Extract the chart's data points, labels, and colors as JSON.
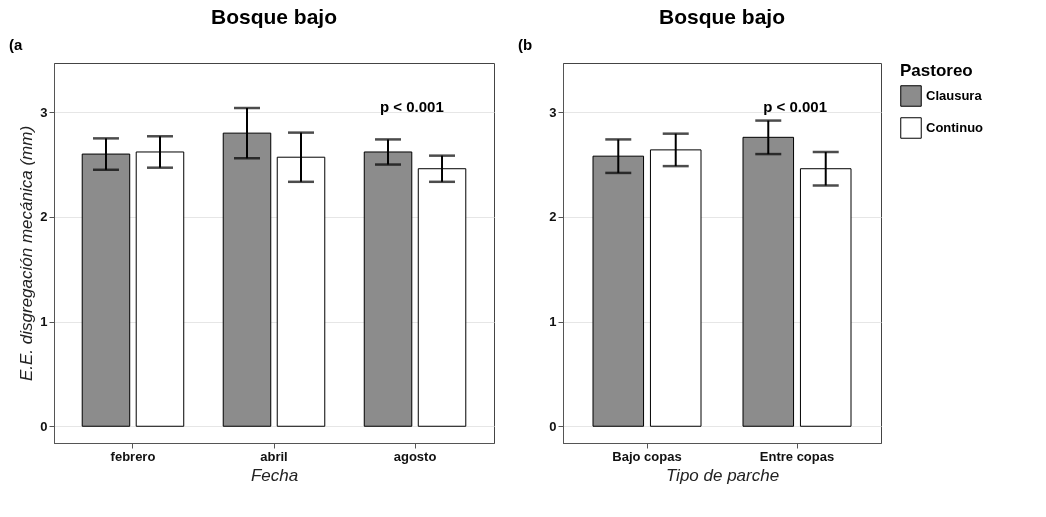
{
  "chart_data": [
    {
      "type": "bar",
      "title": "Bosque bajo",
      "xlabel": "Fecha",
      "ylabel": "E.E. disgregación mecánica (mm)",
      "categories": [
        "febrero",
        "abril",
        "agosto"
      ],
      "series": [
        {
          "name": "Clausura",
          "color": "#8c8c8c",
          "values": [
            2.6,
            2.8,
            2.62
          ],
          "errors": [
            0.15,
            0.24,
            0.12
          ]
        },
        {
          "name": "Continuo",
          "color": "#ffffff",
          "values": [
            2.62,
            2.57,
            2.46
          ],
          "errors": [
            0.15,
            0.235,
            0.125
          ]
        }
      ],
      "ylim": [
        -0.16,
        3.47
      ],
      "yticks": [
        0,
        1,
        2,
        3
      ],
      "grid": "y",
      "legend": "right",
      "annotations": [
        "(a",
        "p < 0.001"
      ]
    },
    {
      "type": "bar",
      "title": "Bosque bajo",
      "xlabel": "Tipo de parche",
      "legend_title": "Pastoreo",
      "categories": [
        "Bajo copas",
        "Entre copas"
      ],
      "series": [
        {
          "name": "Clausura",
          "color": "#8c8c8c",
          "values": [
            2.58,
            2.76
          ],
          "errors": [
            0.16,
            0.16
          ]
        },
        {
          "name": "Continuo",
          "color": "#ffffff",
          "values": [
            2.64,
            2.46
          ],
          "errors": [
            0.155,
            0.16
          ]
        }
      ],
      "ylim": [
        -0.16,
        3.47
      ],
      "yticks": [
        0,
        1,
        2,
        3
      ],
      "grid": "y",
      "legend": "right",
      "annotations": [
        "(b",
        "p < 0.001"
      ]
    }
  ]
}
